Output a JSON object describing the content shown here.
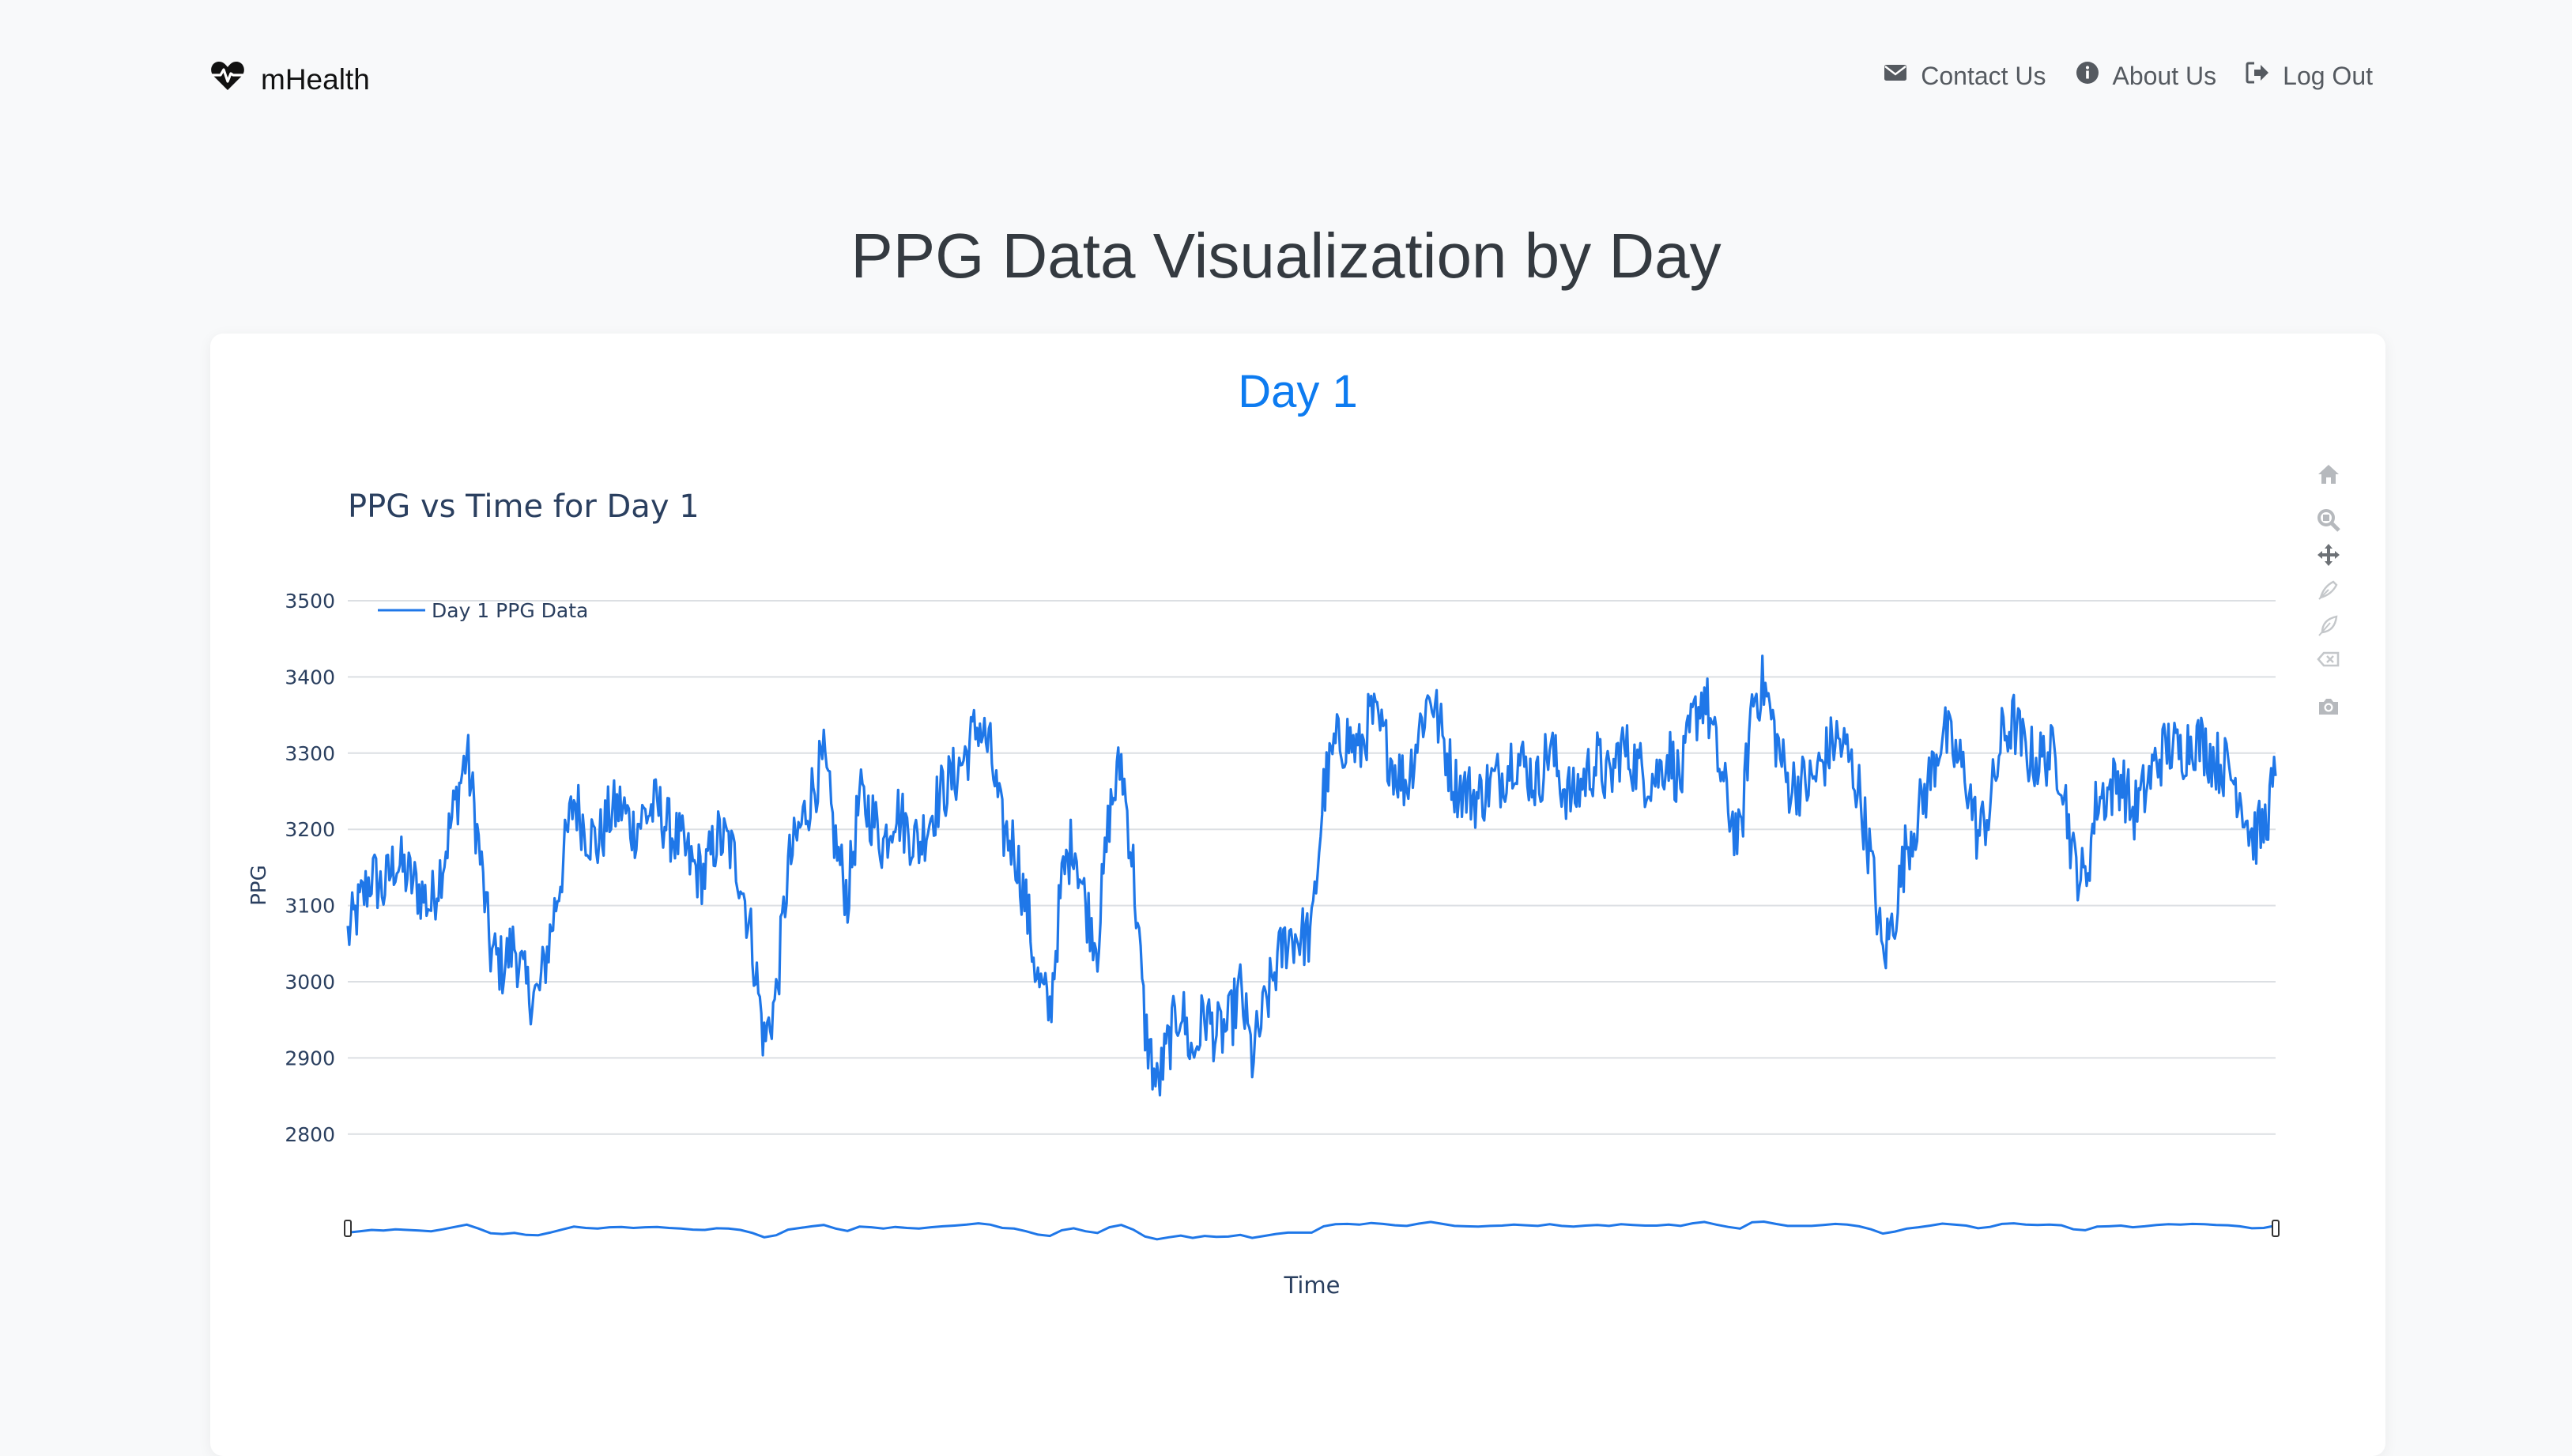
{
  "nav": {
    "brand": "mHealth",
    "links": [
      {
        "label": "Contact Us",
        "icon": "envelope-icon"
      },
      {
        "label": "About Us",
        "icon": "info-circle-icon"
      },
      {
        "label": "Log Out",
        "icon": "sign-out-icon"
      }
    ]
  },
  "page": {
    "title": "PPG Data Visualization by Day"
  },
  "card": {
    "day_title": "Day 1"
  },
  "modebar": [
    "home-icon",
    "zoom-icon",
    "pan-icon",
    "draw-open-path-icon",
    "draw-closed-path-icon",
    "erase-shape-icon",
    "camera-icon"
  ],
  "colors": {
    "accent": "#0d7bf0",
    "line": "#1f77e8",
    "grid": "#dcdfe3"
  },
  "chart_data": {
    "type": "line",
    "title": "PPG vs Time for Day 1",
    "xlabel": "Time",
    "ylabel": "PPG",
    "ylim": [
      2760,
      3520
    ],
    "yticks": [
      2800,
      2900,
      3000,
      3100,
      3200,
      3300,
      3400,
      3500
    ],
    "legend": "top-left",
    "grid": true,
    "range_slider": true,
    "series": [
      {
        "name": "Day 1 PPG Data",
        "values": [
          3060,
          3100,
          3140,
          3120,
          3160,
          3140,
          3120,
          3100,
          3160,
          3230,
          3300,
          3180,
          3040,
          3020,
          3050,
          2990,
          2980,
          3060,
          3150,
          3240,
          3200,
          3180,
          3220,
          3230,
          3200,
          3220,
          3230,
          3200,
          3180,
          3150,
          3140,
          3190,
          3180,
          3140,
          3050,
          2920,
          2980,
          3150,
          3200,
          3250,
          3290,
          3180,
          3110,
          3240,
          3220,
          3180,
          3230,
          3200,
          3180,
          3220,
          3250,
          3270,
          3300,
          3340,
          3300,
          3200,
          3180,
          3100,
          3000,
          2960,
          3130,
          3190,
          3100,
          3050,
          3220,
          3290,
          3150,
          2940,
          2860,
          2920,
          2970,
          2900,
          2960,
          2930,
          2940,
          2990,
          2900,
          2960,
          3020,
          3060,
          3060,
          3060,
          3250,
          3310,
          3320,
          3300,
          3350,
          3320,
          3280,
          3260,
          3330,
          3380,
          3320,
          3260,
          3250,
          3240,
          3260,
          3270,
          3300,
          3280,
          3260,
          3310,
          3260,
          3240,
          3270,
          3290,
          3260,
          3310,
          3290,
          3270,
          3270,
          3300,
          3260,
          3340,
          3380,
          3300,
          3230,
          3180,
          3370,
          3390,
          3320,
          3260,
          3260,
          3260,
          3290,
          3320,
          3300,
          3250,
          3160,
          3030,
          3090,
          3180,
          3220,
          3270,
          3330,
          3300,
          3270,
          3190,
          3230,
          3320,
          3340,
          3300,
          3290,
          3300,
          3280,
          3160,
          3130,
          3240,
          3250,
          3270,
          3220,
          3250,
          3290,
          3310,
          3300,
          3320,
          3310,
          3290,
          3280,
          3250,
          3190,
          3200,
          3270
        ]
      }
    ]
  }
}
